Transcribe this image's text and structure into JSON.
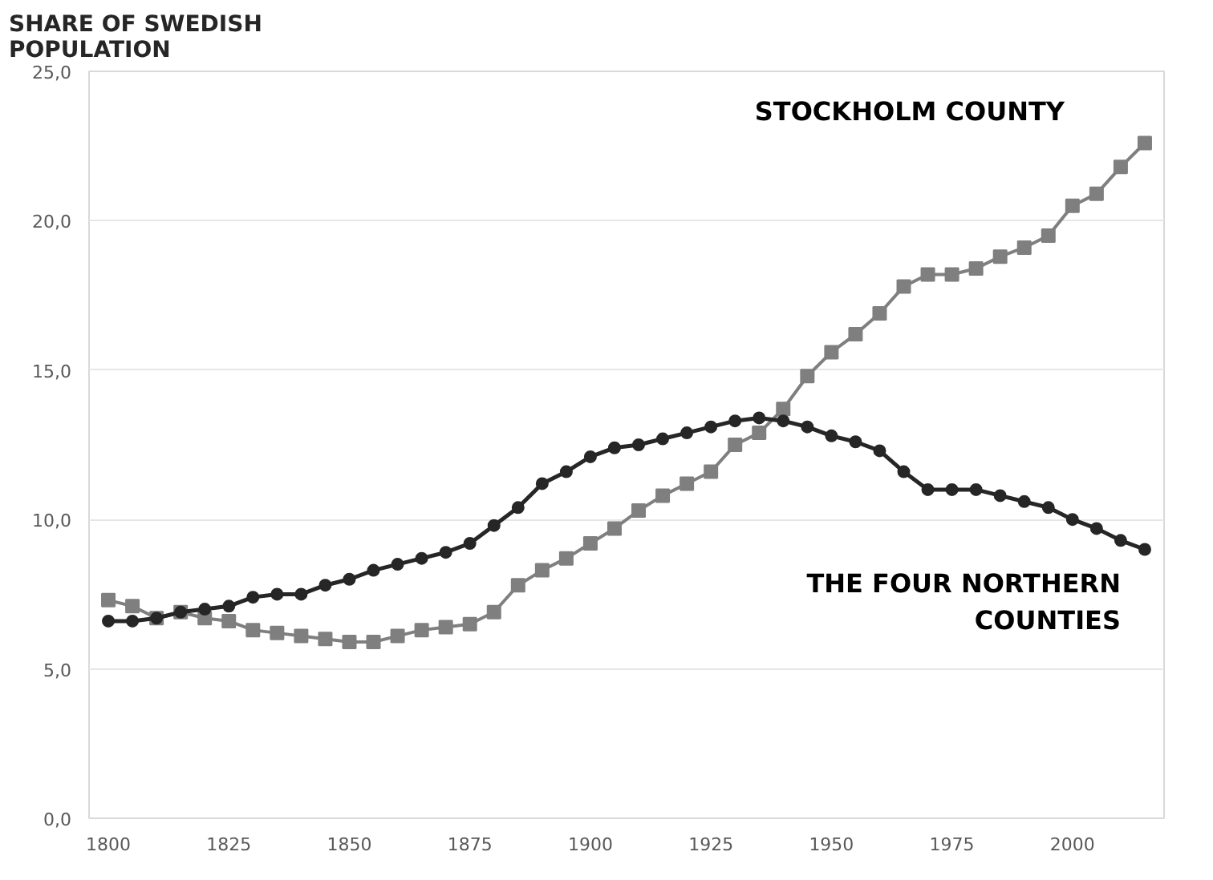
{
  "chart_data": {
    "type": "line",
    "ylabel": "SHARE OF SWEDISH POPULATION",
    "x": [
      1800,
      1805,
      1810,
      1815,
      1820,
      1825,
      1830,
      1835,
      1840,
      1845,
      1850,
      1855,
      1860,
      1865,
      1870,
      1875,
      1880,
      1885,
      1890,
      1895,
      1900,
      1905,
      1910,
      1915,
      1920,
      1925,
      1930,
      1935,
      1940,
      1945,
      1950,
      1955,
      1960,
      1965,
      1970,
      1975,
      1980,
      1985,
      1990,
      1995,
      2000,
      2005,
      2010,
      2015
    ],
    "series": [
      {
        "name": "STOCKHOLM COUNTY",
        "color": "#7f7f7f",
        "marker": "square",
        "values": [
          7.3,
          7.1,
          6.7,
          6.9,
          6.7,
          6.6,
          6.3,
          6.2,
          6.1,
          6.0,
          5.9,
          5.9,
          6.1,
          6.3,
          6.4,
          6.5,
          6.9,
          7.8,
          8.3,
          8.7,
          9.2,
          9.7,
          10.3,
          10.8,
          11.2,
          11.6,
          12.5,
          12.9,
          13.7,
          14.8,
          15.6,
          16.2,
          16.9,
          17.8,
          18.2,
          18.2,
          18.4,
          18.8,
          19.1,
          19.5,
          20.5,
          20.9,
          21.8,
          22.6
        ]
      },
      {
        "name": "THE FOUR NORTHERN COUNTIES",
        "color": "#262626",
        "marker": "circle",
        "values": [
          6.6,
          6.6,
          6.7,
          6.9,
          7.0,
          7.1,
          7.4,
          7.5,
          7.5,
          7.8,
          8.0,
          8.3,
          8.5,
          8.7,
          8.9,
          9.2,
          9.8,
          10.4,
          11.2,
          11.6,
          12.1,
          12.4,
          12.5,
          12.7,
          12.9,
          13.1,
          13.3,
          13.4,
          13.3,
          13.1,
          12.8,
          12.6,
          12.3,
          11.6,
          11.0,
          11.0,
          11.0,
          10.8,
          10.6,
          10.4,
          10.0,
          9.7,
          9.3,
          9.0
        ]
      }
    ],
    "xlim": [
      1796,
      2019
    ],
    "ylim": [
      0,
      25
    ],
    "xticks": [
      1800,
      1825,
      1850,
      1875,
      1900,
      1925,
      1950,
      1975,
      2000
    ],
    "yticks": [
      {
        "value": 0,
        "label": "0,0"
      },
      {
        "value": 5,
        "label": "5,0"
      },
      {
        "value": 10,
        "label": "10,0"
      },
      {
        "value": 15,
        "label": "15,0"
      },
      {
        "value": 20,
        "label": "20,0"
      },
      {
        "value": 25,
        "label": "25,0"
      }
    ],
    "grid": "y",
    "line_style": "solid"
  }
}
